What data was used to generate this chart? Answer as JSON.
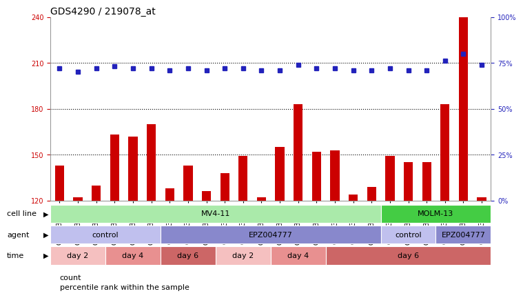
{
  "title": "GDS4290 / 219078_at",
  "samples": [
    "GSM739151",
    "GSM739152",
    "GSM739153",
    "GSM739157",
    "GSM739158",
    "GSM739159",
    "GSM739163",
    "GSM739164",
    "GSM739165",
    "GSM739148",
    "GSM739149",
    "GSM739150",
    "GSM739154",
    "GSM739155",
    "GSM739156",
    "GSM739160",
    "GSM739161",
    "GSM739162",
    "GSM739169",
    "GSM739170",
    "GSM739171",
    "GSM739166",
    "GSM739167",
    "GSM739168"
  ],
  "counts": [
    143,
    122,
    130,
    163,
    162,
    170,
    128,
    143,
    126,
    138,
    149,
    122,
    155,
    183,
    152,
    153,
    124,
    129,
    149,
    145,
    145,
    183,
    240,
    122
  ],
  "percentiles": [
    72,
    70,
    72,
    73,
    72,
    72,
    71,
    72,
    71,
    72,
    72,
    71,
    71,
    74,
    72,
    72,
    71,
    71,
    72,
    71,
    71,
    76,
    80,
    74
  ],
  "bar_color": "#cc0000",
  "dot_color": "#2222bb",
  "ylim_left": [
    120,
    240
  ],
  "yticks_left": [
    120,
    150,
    180,
    210,
    240
  ],
  "yticks_right": [
    0,
    25,
    50,
    75,
    100
  ],
  "grid_values": [
    150,
    180,
    210
  ],
  "cell_line_groups": [
    {
      "label": "MV4-11",
      "start": 0,
      "end": 18,
      "color": "#aaeaaa"
    },
    {
      "label": "MOLM-13",
      "start": 18,
      "end": 24,
      "color": "#44cc44"
    }
  ],
  "agent_groups": [
    {
      "label": "control",
      "start": 0,
      "end": 6,
      "color": "#c0c0ee"
    },
    {
      "label": "EPZ004777",
      "start": 6,
      "end": 18,
      "color": "#8888cc"
    },
    {
      "label": "control",
      "start": 18,
      "end": 21,
      "color": "#c0c0ee"
    },
    {
      "label": "EPZ004777",
      "start": 21,
      "end": 24,
      "color": "#8888cc"
    }
  ],
  "time_groups": [
    {
      "label": "day 2",
      "start": 0,
      "end": 3,
      "color": "#f5c0c0"
    },
    {
      "label": "day 4",
      "start": 3,
      "end": 6,
      "color": "#e89090"
    },
    {
      "label": "day 6",
      "start": 6,
      "end": 9,
      "color": "#cc6666"
    },
    {
      "label": "day 2",
      "start": 9,
      "end": 12,
      "color": "#f5c0c0"
    },
    {
      "label": "day 4",
      "start": 12,
      "end": 15,
      "color": "#e89090"
    },
    {
      "label": "day 6",
      "start": 15,
      "end": 24,
      "color": "#cc6666"
    }
  ],
  "legend": [
    {
      "color": "#cc0000",
      "label": "count"
    },
    {
      "color": "#2222bb",
      "label": "percentile rank within the sample"
    }
  ],
  "bar_width": 0.5,
  "title_fontsize": 10,
  "tick_fontsize": 7,
  "annot_fontsize": 8
}
